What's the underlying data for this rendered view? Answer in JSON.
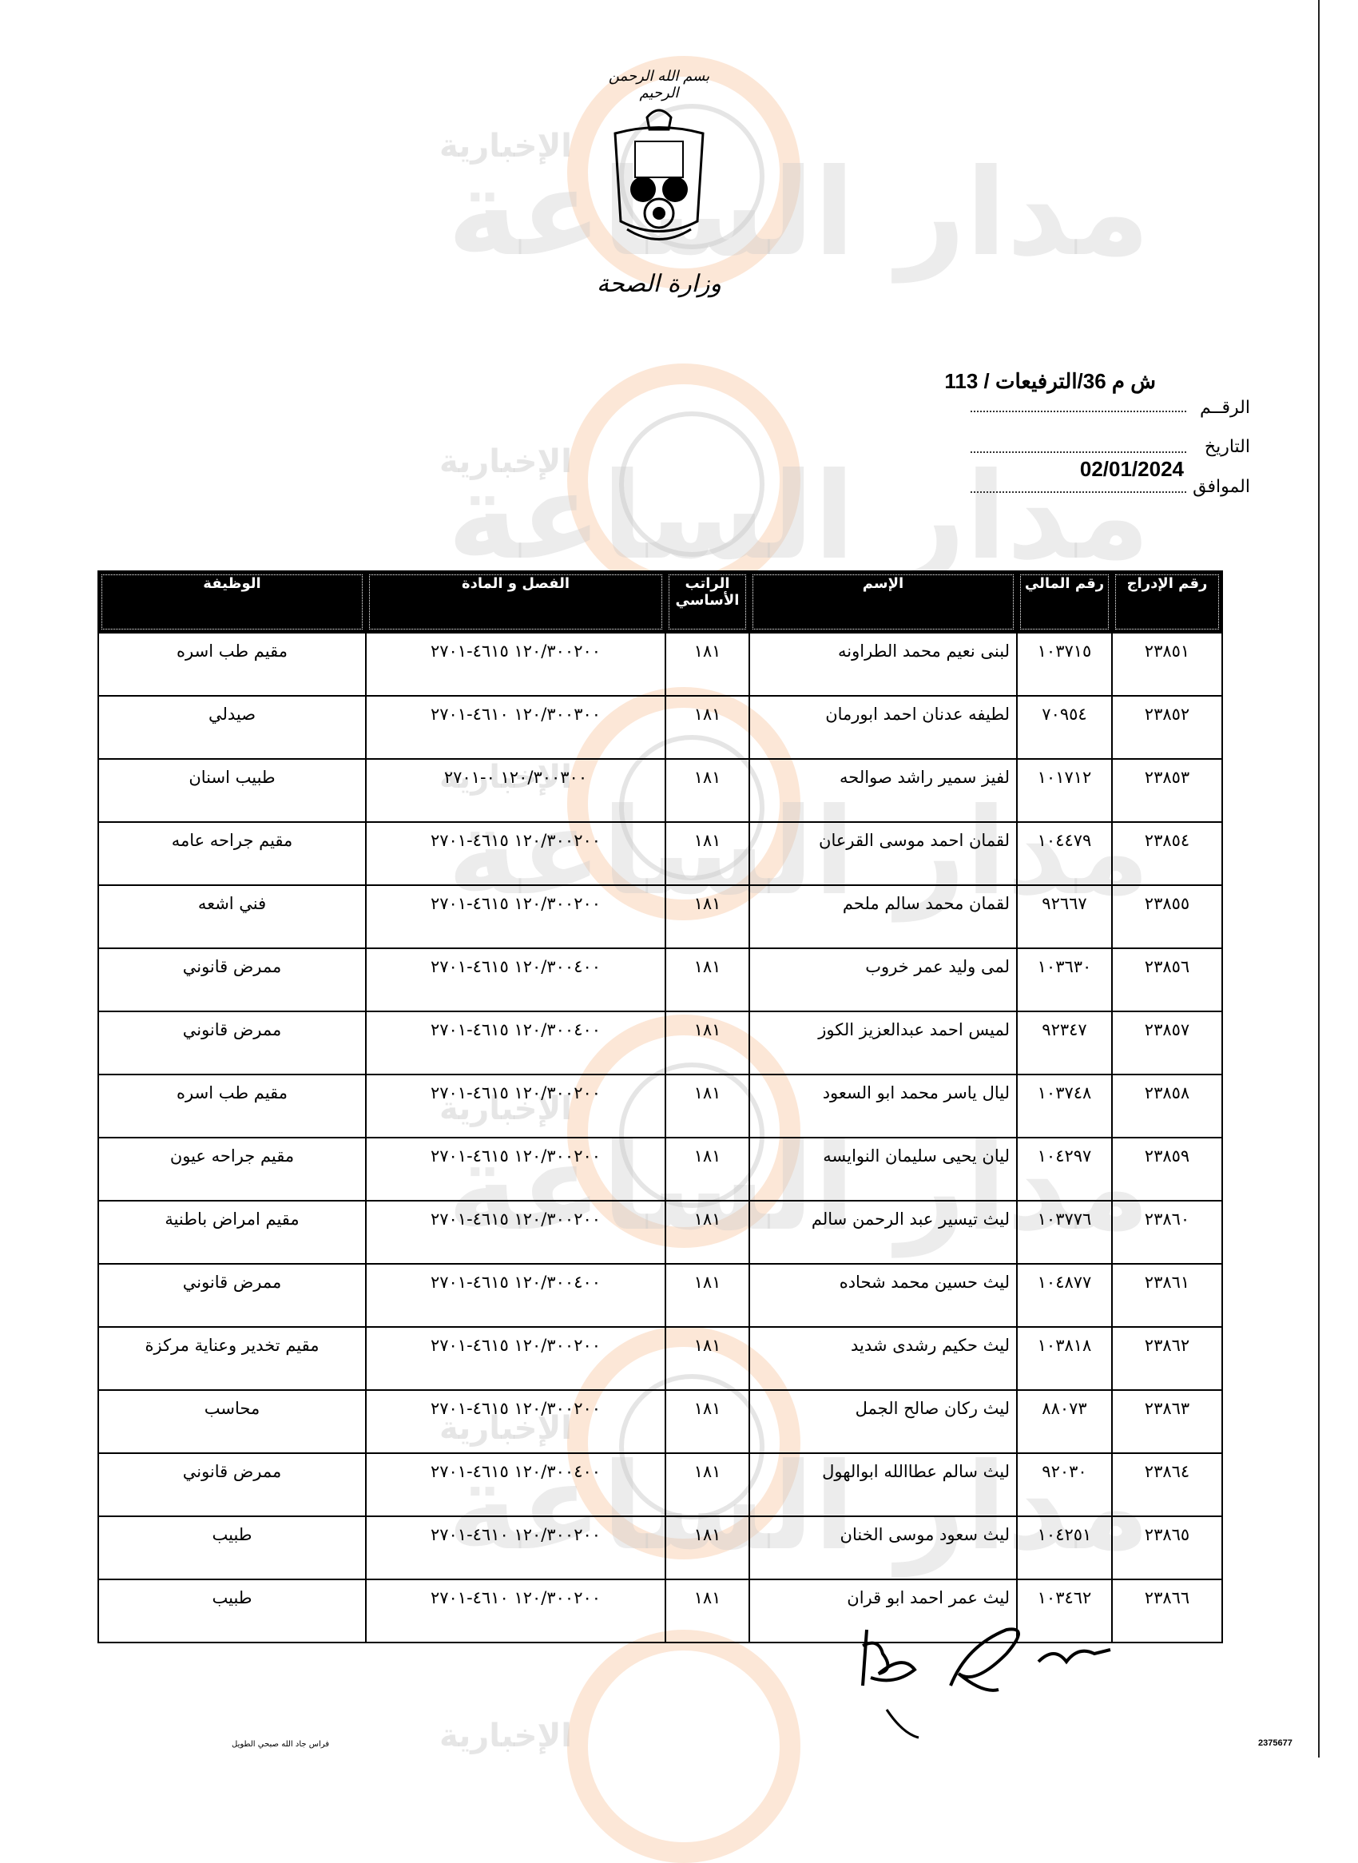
{
  "header": {
    "bismillah": "بسم الله الرحمن الرحيم",
    "ministry": "وزارة الصحة",
    "reference": "ش م 36/الترفيعات / 113",
    "number_label": "الرقــم",
    "date_label": "التاريخ",
    "date_value": "02/01/2024",
    "corresponding_label": "الموافق"
  },
  "watermark": {
    "brand": "مدار الساعة",
    "sub": "الإخبارية",
    "accent": "#f5aa6e"
  },
  "table": {
    "columns": [
      "رقم الإدراج",
      "رقم المالي",
      "الإسم",
      "الراتب الأساسي",
      "الفصل و المادة",
      "الوظيفة"
    ],
    "rows": [
      {
        "no": "٢٣٨٥١",
        "fin": "١٠٣٧١٥",
        "name": "لبنى نعيم محمد الطراونه",
        "salary": "١٨١",
        "article": "١٢٠/٣٠٠٢٠٠ ٤٦١٥-٢٧٠١",
        "job": "مقيم طب اسره"
      },
      {
        "no": "٢٣٨٥٢",
        "fin": "٧٠٩٥٤",
        "name": "لطيفه عدنان احمد ابورمان",
        "salary": "١٨١",
        "article": "١٢٠/٣٠٠٣٠٠ ٤٦١٠-٢٧٠١",
        "job": "صيدلي"
      },
      {
        "no": "٢٣٨٥٣",
        "fin": "١٠١٧١٢",
        "name": "لفيز سمير راشد صوالحه",
        "salary": "١٨١",
        "article": "١٢٠/٣٠٠٣٠٠ ٠-٢٧٠١",
        "job": "طبيب اسنان"
      },
      {
        "no": "٢٣٨٥٤",
        "fin": "١٠٤٤٧٩",
        "name": "لقمان احمد موسى القرعان",
        "salary": "١٨١",
        "article": "١٢٠/٣٠٠٢٠٠ ٤٦١٥-٢٧٠١",
        "job": "مقيم جراحه عامه"
      },
      {
        "no": "٢٣٨٥٥",
        "fin": "٩٢٦٦٧",
        "name": "لقمان محمد سالم ملحم",
        "salary": "١٨١",
        "article": "١٢٠/٣٠٠٢٠٠ ٤٦١٥-٢٧٠١",
        "job": "فني اشعه"
      },
      {
        "no": "٢٣٨٥٦",
        "fin": "١٠٣٦٣٠",
        "name": "لمى وليد عمر خروب",
        "salary": "١٨١",
        "article": "١٢٠/٣٠٠٤٠٠ ٤٦١٥-٢٧٠١",
        "job": "ممرض قانوني"
      },
      {
        "no": "٢٣٨٥٧",
        "fin": "٩٢٣٤٧",
        "name": "لميس احمد عبدالعزيز الكوز",
        "salary": "١٨١",
        "article": "١٢٠/٣٠٠٤٠٠ ٤٦١٥-٢٧٠١",
        "job": "ممرض قانوني"
      },
      {
        "no": "٢٣٨٥٨",
        "fin": "١٠٣٧٤٨",
        "name": "ليال ياسر محمد ابو السعود",
        "salary": "١٨١",
        "article": "١٢٠/٣٠٠٢٠٠ ٤٦١٥-٢٧٠١",
        "job": "مقيم طب اسره"
      },
      {
        "no": "٢٣٨٥٩",
        "fin": "١٠٤٢٩٧",
        "name": "ليان يحيى سليمان النوايسه",
        "salary": "١٨١",
        "article": "١٢٠/٣٠٠٢٠٠ ٤٦١٥-٢٧٠١",
        "job": "مقيم جراحه عيون"
      },
      {
        "no": "٢٣٨٦٠",
        "fin": "١٠٣٧٧٦",
        "name": "ليث تيسير عبد الرحمن سالم",
        "salary": "١٨١",
        "article": "١٢٠/٣٠٠٢٠٠ ٤٦١٥-٢٧٠١",
        "job": "مقيم امراض باطنية"
      },
      {
        "no": "٢٣٨٦١",
        "fin": "١٠٤٨٧٧",
        "name": "ليث حسين محمد شحاده",
        "salary": "١٨١",
        "article": "١٢٠/٣٠٠٤٠٠ ٤٦١٥-٢٧٠١",
        "job": "ممرض قانوني"
      },
      {
        "no": "٢٣٨٦٢",
        "fin": "١٠٣٨١٨",
        "name": "ليث حكيم رشدى شديد",
        "salary": "١٨١",
        "article": "١٢٠/٣٠٠٢٠٠ ٤٦١٥-٢٧٠١",
        "job": "مقيم تخدير وعناية مركزة"
      },
      {
        "no": "٢٣٨٦٣",
        "fin": "٨٨٠٧٣",
        "name": "ليث ركان صالح الجمل",
        "salary": "١٨١",
        "article": "١٢٠/٣٠٠٢٠٠ ٤٦١٥-٢٧٠١",
        "job": "محاسب"
      },
      {
        "no": "٢٣٨٦٤",
        "fin": "٩٢٠٣٠",
        "name": "ليث سالم عطاالله ابوالهول",
        "salary": "١٨١",
        "article": "١٢٠/٣٠٠٤٠٠ ٤٦١٥-٢٧٠١",
        "job": "ممرض قانوني"
      },
      {
        "no": "٢٣٨٦٥",
        "fin": "١٠٤٢٥١",
        "name": "ليث سعود موسى الخنان",
        "salary": "١٨١",
        "article": "١٢٠/٣٠٠٢٠٠ ٤٦١٠-٢٧٠١",
        "job": "طبيب"
      },
      {
        "no": "٢٣٨٦٦",
        "fin": "١٠٣٤٦٢",
        "name": "ليث عمر احمد ابو قران",
        "salary": "١٨١",
        "article": "١٢٠/٣٠٠٢٠٠ ٤٦١٠-٢٧٠١",
        "job": "طبيب"
      }
    ]
  },
  "footer": {
    "left_note": "فراس جاد الله صبحي الطويل",
    "scan_id": "2375677"
  }
}
